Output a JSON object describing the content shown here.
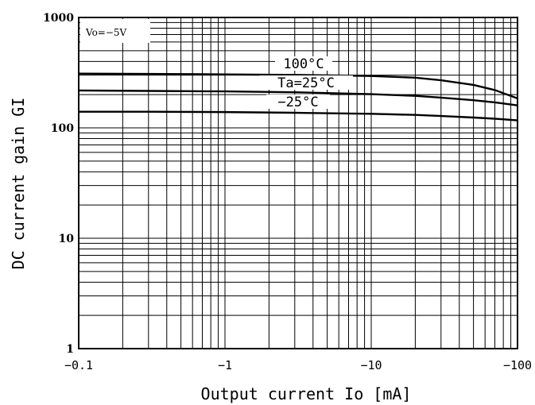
{
  "chart_data": {
    "type": "line",
    "xscale": "log",
    "yscale": "log",
    "xlim": [
      0.1,
      100
    ],
    "ylim": [
      1,
      1000
    ],
    "grid": true,
    "xlabel": "Output current Io [mA]",
    "ylabel": "DC current gain GI",
    "condition": "Vo=−5V",
    "xticks": [
      {
        "value": 0.1,
        "label": "−0.1"
      },
      {
        "value": 1,
        "label": "−1"
      },
      {
        "value": 10,
        "label": "−10"
      },
      {
        "value": 100,
        "label": "−100"
      }
    ],
    "yticks": [
      {
        "value": 1,
        "label": "1"
      },
      {
        "value": 10,
        "label": "10"
      },
      {
        "value": 100,
        "label": "100"
      },
      {
        "value": 1000,
        "label": "1000"
      }
    ],
    "series": [
      {
        "name": "100°C",
        "x": [
          0.1,
          0.3,
          1,
          3,
          10,
          20,
          30,
          50,
          70,
          100
        ],
        "y": [
          310,
          308,
          305,
          302,
          295,
          285,
          270,
          245,
          220,
          185
        ]
      },
      {
        "name": "Ta=25°C",
        "x": [
          0.1,
          0.3,
          1,
          3,
          10,
          20,
          30,
          50,
          70,
          100
        ],
        "y": [
          218,
          216,
          214,
          210,
          202,
          195,
          188,
          178,
          170,
          160
        ]
      },
      {
        "name": "−25°C",
        "x": [
          0.1,
          0.3,
          1,
          3,
          10,
          20,
          30,
          50,
          70,
          100
        ],
        "y": [
          140,
          140,
          139,
          137,
          134,
          131,
          128,
          124,
          121,
          117
        ]
      }
    ]
  }
}
